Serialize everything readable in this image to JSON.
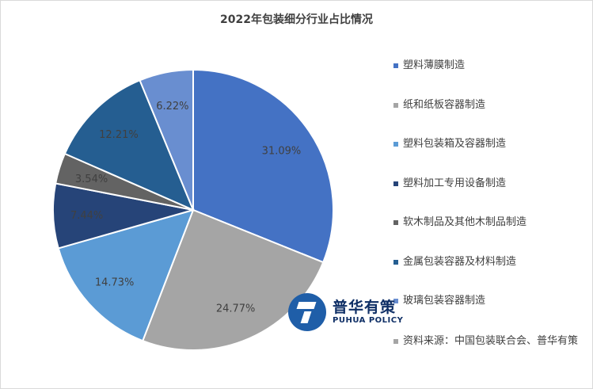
{
  "chart_data": {
    "type": "pie",
    "title": "2022年包装细分行业占比情况",
    "slices": [
      {
        "label": "塑料薄膜制造",
        "value": 31.09,
        "value_label": "31.09%",
        "color": "#4472c4"
      },
      {
        "label": "纸和纸板容器制造",
        "value": 24.77,
        "value_label": "24.77%",
        "color": "#a5a5a5"
      },
      {
        "label": "塑料包装箱及容器制造",
        "value": 14.73,
        "value_label": "14.73%",
        "color": "#5b9bd5"
      },
      {
        "label": "塑料加工专用设备制造",
        "value": 7.44,
        "value_label": "7.44%",
        "color": "#264478"
      },
      {
        "label": "软木制品及其他木制品制造",
        "value": 3.54,
        "value_label": "3.54%",
        "color": "#636363"
      },
      {
        "label": "金属包装容器及材料制造",
        "value": 12.21,
        "value_label": "12.21%",
        "color": "#255e91"
      },
      {
        "label": "玻璃包装容器制造",
        "value": 6.22,
        "value_label": "6.22%",
        "color": "#698ed0"
      }
    ],
    "legend_note": {
      "label": "资料来源：中国包装联合会、普华有策",
      "color": "#a5a5a5"
    },
    "legend_position": "right"
  },
  "logo": {
    "name_cn": "普华有策",
    "name_en": "PUHUA POLICY"
  }
}
